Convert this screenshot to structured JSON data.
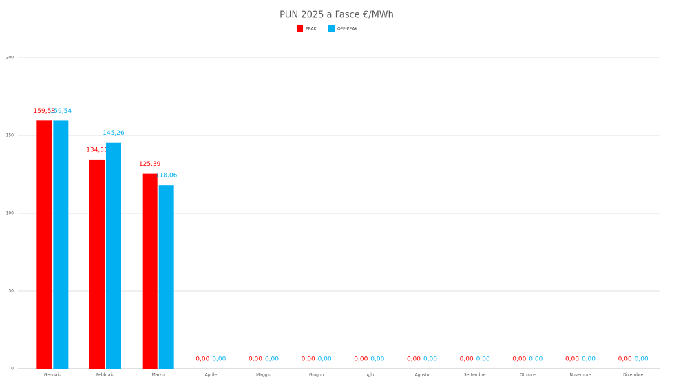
{
  "chart_data": {
    "type": "bar",
    "title": "PUN 2025 a Fasce €/MWh",
    "categories": [
      "Gennaio",
      "Febbraio",
      "Marzo",
      "Aprile",
      "Maggio",
      "Giugno",
      "Luglio",
      "Agosto",
      "Settembre",
      "Ottobre",
      "Novembre",
      "Dicembre"
    ],
    "series": [
      {
        "name": "PEAK",
        "color": "#ff0000",
        "values": [
          159.58,
          134.55,
          125.39,
          0,
          0,
          0,
          0,
          0,
          0,
          0,
          0,
          0
        ],
        "value_labels": [
          "159,58",
          "134,55",
          "125,39",
          "0,00",
          "0,00",
          "0,00",
          "0,00",
          "0,00",
          "0,00",
          "0,00",
          "0,00",
          "0,00"
        ]
      },
      {
        "name": "OFF-PEAK",
        "color": "#00b0f0",
        "values": [
          159.54,
          145.26,
          118.06,
          0,
          0,
          0,
          0,
          0,
          0,
          0,
          0,
          0
        ],
        "value_labels": [
          "159,54",
          "145,26",
          "118,06",
          "0,00",
          "0,00",
          "0,00",
          "0,00",
          "0,00",
          "0,00",
          "0,00",
          "0,00",
          "0,00"
        ]
      }
    ],
    "ylim": [
      0,
      200
    ],
    "yticks": [
      0,
      50,
      100,
      150,
      200
    ],
    "grid": true,
    "legend": "top"
  }
}
